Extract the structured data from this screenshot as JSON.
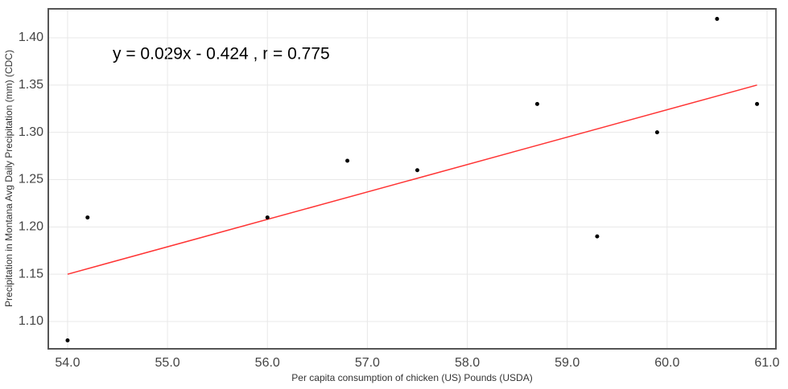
{
  "chart_data": {
    "type": "scatter",
    "annotation": "y = 0.029x - 0.424 ,  r = 0.775",
    "x_label": "Per capita consumption of chicken (US) Pounds (USDA)",
    "y_label": "Precipitation in Montana Avg Daily Precipitation (mm) (CDC)",
    "x": [
      54.0,
      54.2,
      56.0,
      56.8,
      57.5,
      58.7,
      59.3,
      59.9,
      60.5,
      60.9
    ],
    "values": [
      1.08,
      1.21,
      1.21,
      1.27,
      1.26,
      1.33,
      1.19,
      1.3,
      1.42,
      1.33
    ],
    "color": "#000000",
    "fit_line": {
      "x": [
        54.0,
        60.9
      ],
      "values": [
        1.15,
        1.35
      ],
      "color": "#ff3333"
    },
    "xlim": [
      53.807,
      61.089
    ],
    "ylim": [
      1.0711,
      1.4306
    ],
    "xticks": [
      {
        "value": 54,
        "label": "54.0"
      },
      {
        "value": 55,
        "label": "55.0"
      },
      {
        "value": 56,
        "label": "56.0"
      },
      {
        "value": 57,
        "label": "57.0"
      },
      {
        "value": 58,
        "label": "58.0"
      },
      {
        "value": 59,
        "label": "59.0"
      },
      {
        "value": 60,
        "label": "60.0"
      },
      {
        "value": 61,
        "label": "61.0"
      }
    ],
    "yticks": [
      {
        "value": 1.1,
        "label": "1.10"
      },
      {
        "value": 1.15,
        "label": "1.15"
      },
      {
        "value": 1.2,
        "label": "1.20"
      },
      {
        "value": 1.25,
        "label": "1.25"
      },
      {
        "value": 1.3,
        "label": "1.30"
      },
      {
        "value": 1.35,
        "label": "1.35"
      },
      {
        "value": 1.4,
        "label": "1.40"
      }
    ],
    "grid": true
  }
}
